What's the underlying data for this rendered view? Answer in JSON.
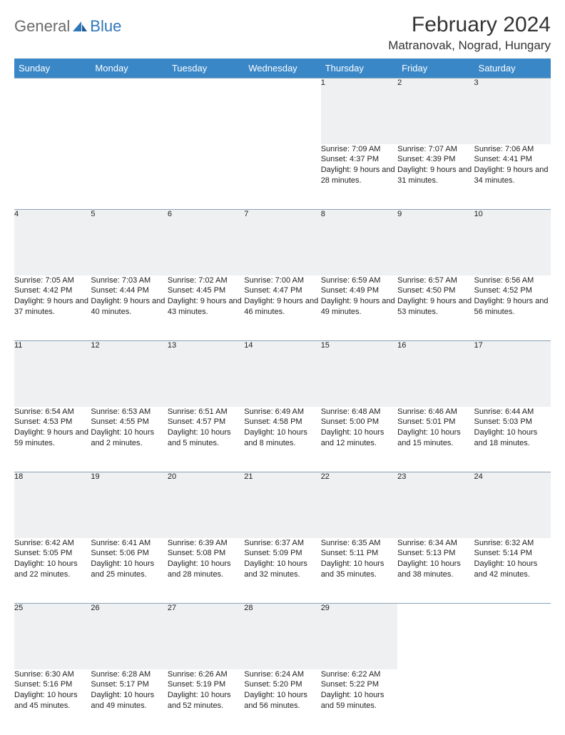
{
  "logo": {
    "part1": "General",
    "part2": "Blue"
  },
  "title": "February 2024",
  "location": "Matranovak, Nograd, Hungary",
  "colors": {
    "header_bg": "#3a87c7",
    "header_text": "#ffffff",
    "daynum_bg": "#eef0f2",
    "daynum_border": "#8aa3b8",
    "logo_gray": "#6a6a6a",
    "logo_blue": "#2f77b8"
  },
  "weekdays": [
    "Sunday",
    "Monday",
    "Tuesday",
    "Wednesday",
    "Thursday",
    "Friday",
    "Saturday"
  ],
  "weeks": [
    {
      "nums": [
        "",
        "",
        "",
        "",
        "1",
        "2",
        "3"
      ],
      "cells": [
        "",
        "",
        "",
        "",
        "Sunrise: 7:09 AM\nSunset: 4:37 PM\nDaylight: 9 hours and 28 minutes.",
        "Sunrise: 7:07 AM\nSunset: 4:39 PM\nDaylight: 9 hours and 31 minutes.",
        "Sunrise: 7:06 AM\nSunset: 4:41 PM\nDaylight: 9 hours and 34 minutes."
      ]
    },
    {
      "nums": [
        "4",
        "5",
        "6",
        "7",
        "8",
        "9",
        "10"
      ],
      "cells": [
        "Sunrise: 7:05 AM\nSunset: 4:42 PM\nDaylight: 9 hours and 37 minutes.",
        "Sunrise: 7:03 AM\nSunset: 4:44 PM\nDaylight: 9 hours and 40 minutes.",
        "Sunrise: 7:02 AM\nSunset: 4:45 PM\nDaylight: 9 hours and 43 minutes.",
        "Sunrise: 7:00 AM\nSunset: 4:47 PM\nDaylight: 9 hours and 46 minutes.",
        "Sunrise: 6:59 AM\nSunset: 4:49 PM\nDaylight: 9 hours and 49 minutes.",
        "Sunrise: 6:57 AM\nSunset: 4:50 PM\nDaylight: 9 hours and 53 minutes.",
        "Sunrise: 6:56 AM\nSunset: 4:52 PM\nDaylight: 9 hours and 56 minutes."
      ]
    },
    {
      "nums": [
        "11",
        "12",
        "13",
        "14",
        "15",
        "16",
        "17"
      ],
      "cells": [
        "Sunrise: 6:54 AM\nSunset: 4:53 PM\nDaylight: 9 hours and 59 minutes.",
        "Sunrise: 6:53 AM\nSunset: 4:55 PM\nDaylight: 10 hours and 2 minutes.",
        "Sunrise: 6:51 AM\nSunset: 4:57 PM\nDaylight: 10 hours and 5 minutes.",
        "Sunrise: 6:49 AM\nSunset: 4:58 PM\nDaylight: 10 hours and 8 minutes.",
        "Sunrise: 6:48 AM\nSunset: 5:00 PM\nDaylight: 10 hours and 12 minutes.",
        "Sunrise: 6:46 AM\nSunset: 5:01 PM\nDaylight: 10 hours and 15 minutes.",
        "Sunrise: 6:44 AM\nSunset: 5:03 PM\nDaylight: 10 hours and 18 minutes."
      ]
    },
    {
      "nums": [
        "18",
        "19",
        "20",
        "21",
        "22",
        "23",
        "24"
      ],
      "cells": [
        "Sunrise: 6:42 AM\nSunset: 5:05 PM\nDaylight: 10 hours and 22 minutes.",
        "Sunrise: 6:41 AM\nSunset: 5:06 PM\nDaylight: 10 hours and 25 minutes.",
        "Sunrise: 6:39 AM\nSunset: 5:08 PM\nDaylight: 10 hours and 28 minutes.",
        "Sunrise: 6:37 AM\nSunset: 5:09 PM\nDaylight: 10 hours and 32 minutes.",
        "Sunrise: 6:35 AM\nSunset: 5:11 PM\nDaylight: 10 hours and 35 minutes.",
        "Sunrise: 6:34 AM\nSunset: 5:13 PM\nDaylight: 10 hours and 38 minutes.",
        "Sunrise: 6:32 AM\nSunset: 5:14 PM\nDaylight: 10 hours and 42 minutes."
      ]
    },
    {
      "nums": [
        "25",
        "26",
        "27",
        "28",
        "29",
        "",
        ""
      ],
      "cells": [
        "Sunrise: 6:30 AM\nSunset: 5:16 PM\nDaylight: 10 hours and 45 minutes.",
        "Sunrise: 6:28 AM\nSunset: 5:17 PM\nDaylight: 10 hours and 49 minutes.",
        "Sunrise: 6:26 AM\nSunset: 5:19 PM\nDaylight: 10 hours and 52 minutes.",
        "Sunrise: 6:24 AM\nSunset: 5:20 PM\nDaylight: 10 hours and 56 minutes.",
        "Sunrise: 6:22 AM\nSunset: 5:22 PM\nDaylight: 10 hours and 59 minutes.",
        "",
        ""
      ]
    }
  ]
}
